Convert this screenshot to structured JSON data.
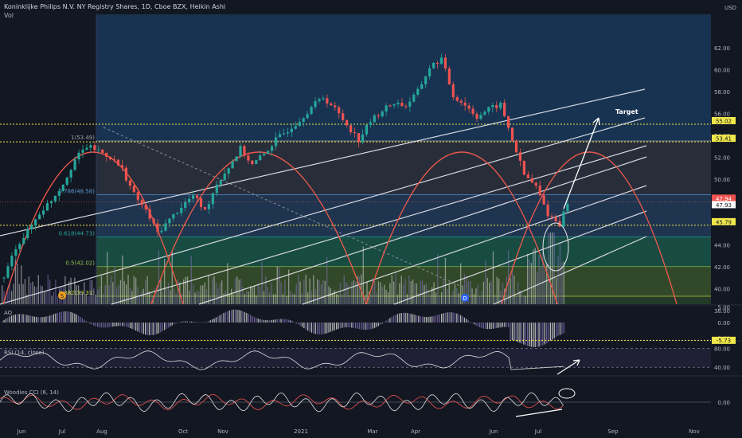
{
  "header": {
    "symbol_line": "Koninklijke Philips N.V. NY Registry Shares, 1D, Cboe BZX, Heikin Ashi",
    "vol_label": "Vol",
    "currency": "USD"
  },
  "colors": {
    "background": "#131722",
    "up": "#26a69a",
    "down": "#ef5350",
    "channel": "#e8e8ee",
    "arc": "#e8584a",
    "dotted": "#f0e84a",
    "fib_blue": "#1e4a78",
    "fib_green": "#1b5e4e",
    "fib_olive": "#3e5b2c"
  },
  "chart_data": [
    {
      "type": "candlestick",
      "title": "Koninklijke Philips N.V. NY Registry Shares, 1D, Cboe BZX, Heikin Ashi",
      "x_ticks": [
        "Jun",
        "Jul",
        "Aug",
        "Oct",
        "Nov",
        "2021",
        "Mar",
        "Apr",
        "Jun",
        "Jul",
        "Sep",
        "Nov"
      ],
      "y_ticks": [
        38.0,
        40.0,
        42.0,
        44.0,
        46.0,
        48.0,
        50.0,
        52.0,
        54.0,
        56.0,
        58.0,
        60.0,
        62.0
      ],
      "ylim": [
        37.3,
        63.0
      ],
      "series_points": [
        {
          "t": 0,
          "v": 41.0
        },
        {
          "t": 3,
          "v": 43.8
        },
        {
          "t": 6,
          "v": 45.2
        },
        {
          "t": 9,
          "v": 46.9
        },
        {
          "t": 12,
          "v": 48.1
        },
        {
          "t": 15,
          "v": 49.6
        },
        {
          "t": 18,
          "v": 51.8
        },
        {
          "t": 21,
          "v": 53.0
        },
        {
          "t": 24,
          "v": 52.6
        },
        {
          "t": 27,
          "v": 52.0
        },
        {
          "t": 30,
          "v": 50.9
        },
        {
          "t": 33,
          "v": 48.6
        },
        {
          "t": 36,
          "v": 47.1
        },
        {
          "t": 39,
          "v": 45.1
        },
        {
          "t": 42,
          "v": 46.3
        },
        {
          "t": 45,
          "v": 47.5
        },
        {
          "t": 48,
          "v": 48.5
        },
        {
          "t": 51,
          "v": 47.1
        },
        {
          "t": 54,
          "v": 49.6
        },
        {
          "t": 57,
          "v": 51.1
        },
        {
          "t": 60,
          "v": 52.8
        },
        {
          "t": 63,
          "v": 51.3
        },
        {
          "t": 66,
          "v": 52.3
        },
        {
          "t": 69,
          "v": 53.6
        },
        {
          "t": 72,
          "v": 54.5
        },
        {
          "t": 75,
          "v": 55.4
        },
        {
          "t": 78,
          "v": 56.6
        },
        {
          "t": 81,
          "v": 57.5
        },
        {
          "t": 84,
          "v": 56.4
        },
        {
          "t": 87,
          "v": 55.0
        },
        {
          "t": 90,
          "v": 53.6
        },
        {
          "t": 93,
          "v": 55.3
        },
        {
          "t": 96,
          "v": 56.3
        },
        {
          "t": 99,
          "v": 57.0
        },
        {
          "t": 102,
          "v": 56.7
        },
        {
          "t": 105,
          "v": 58.0
        },
        {
          "t": 108,
          "v": 60.2
        },
        {
          "t": 111,
          "v": 61.0
        },
        {
          "t": 114,
          "v": 57.6
        },
        {
          "t": 117,
          "v": 56.8
        },
        {
          "t": 120,
          "v": 55.7
        },
        {
          "t": 123,
          "v": 56.4
        },
        {
          "t": 126,
          "v": 56.8
        },
        {
          "t": 129,
          "v": 53.6
        },
        {
          "t": 132,
          "v": 50.4
        },
        {
          "t": 135,
          "v": 49.3
        },
        {
          "t": 138,
          "v": 46.8
        },
        {
          "t": 141,
          "v": 45.9
        },
        {
          "t": 143,
          "v": 47.9
        }
      ],
      "price_labels": [
        {
          "value": 55.02,
          "text": "55.02",
          "style": "yellow"
        },
        {
          "value": 53.41,
          "text": "53.41",
          "style": "yellow"
        },
        {
          "value": 47.94,
          "text": "47.94",
          "style": "red"
        },
        {
          "value": 47.93,
          "text": "47.93",
          "style": "light"
        },
        {
          "value": 45.79,
          "text": "45.79",
          "style": "yellow"
        }
      ],
      "fib_levels": [
        {
          "ratio": "1",
          "value": 53.49,
          "label": "1(53.49)"
        },
        {
          "ratio": "0.786",
          "value": 48.58,
          "label": "0.786(48.58)"
        },
        {
          "ratio": "0.618",
          "value": 44.73,
          "label": "0.618(44.73)"
        },
        {
          "ratio": "0.5",
          "value": 42.02,
          "label": "0.5(42.02)"
        },
        {
          "ratio": "0.382",
          "value": 39.31,
          "label": "0.382(39.31)"
        }
      ],
      "annotations": [
        {
          "text": "Target"
        }
      ],
      "event_markers": [
        "S",
        "D"
      ]
    },
    {
      "type": "bar",
      "title": "AO",
      "y_ticks": [
        5.0,
        0.0,
        -5.0
      ],
      "ylim": [
        -7.5,
        7.5
      ],
      "last_value_label": "-5.73"
    },
    {
      "type": "line",
      "title": "RSI (14, close)",
      "y_ticks": [
        80.0,
        40.0
      ],
      "ylim": [
        10,
        100
      ]
    },
    {
      "type": "line",
      "title": "Woodies CCI (6, 14)",
      "y_ticks": [
        0.0
      ],
      "ylim": [
        -300,
        300
      ]
    }
  ],
  "x_axis": {
    "labels": [
      "Jun",
      "Jul",
      "Aug",
      "Oct",
      "Nov",
      "2021",
      "Mar",
      "Apr",
      "Jun",
      "Jul",
      "Sep",
      "Nov"
    ]
  }
}
